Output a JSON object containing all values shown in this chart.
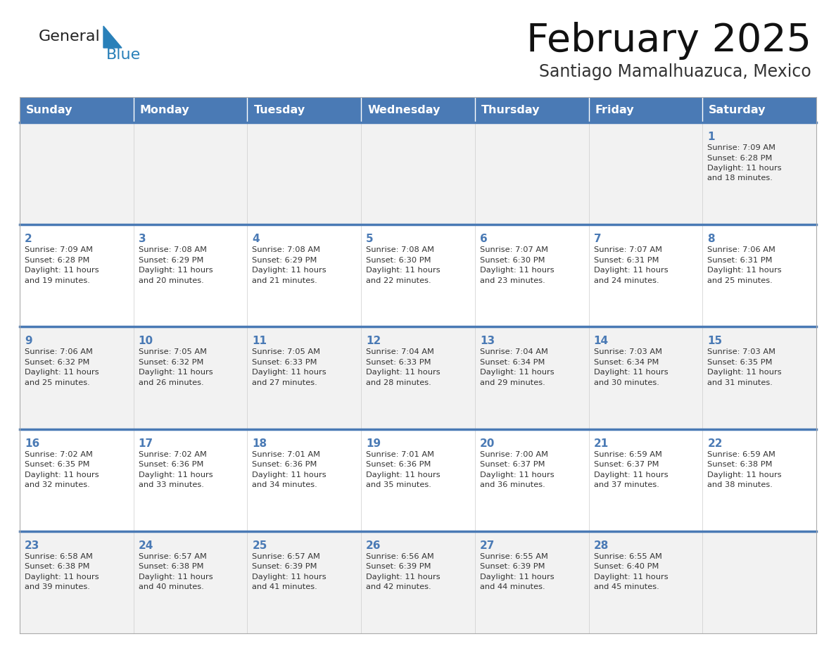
{
  "title": "February 2025",
  "subtitle": "Santiago Mamalhuazuca, Mexico",
  "header_bg": "#4a7ab5",
  "header_text": "#ffffff",
  "day_names": [
    "Sunday",
    "Monday",
    "Tuesday",
    "Wednesday",
    "Thursday",
    "Friday",
    "Saturday"
  ],
  "row_bg_odd": "#f2f2f2",
  "row_bg_even": "#ffffff",
  "cell_text_color": "#333333",
  "date_color": "#4a7ab5",
  "divider_color": "#4a7ab5",
  "logo_general_color": "#222222",
  "logo_blue_color": "#2980b9",
  "logo_triangle_color": "#2980b9",
  "fig_width": 11.88,
  "fig_height": 9.18,
  "dpi": 100,
  "cells": [
    {
      "day": 1,
      "col": 6,
      "row": 0,
      "sunrise": "7:09 AM",
      "sunset": "6:28 PM",
      "daylight_hours": 11,
      "daylight_minutes": 18
    },
    {
      "day": 2,
      "col": 0,
      "row": 1,
      "sunrise": "7:09 AM",
      "sunset": "6:28 PM",
      "daylight_hours": 11,
      "daylight_minutes": 19
    },
    {
      "day": 3,
      "col": 1,
      "row": 1,
      "sunrise": "7:08 AM",
      "sunset": "6:29 PM",
      "daylight_hours": 11,
      "daylight_minutes": 20
    },
    {
      "day": 4,
      "col": 2,
      "row": 1,
      "sunrise": "7:08 AM",
      "sunset": "6:29 PM",
      "daylight_hours": 11,
      "daylight_minutes": 21
    },
    {
      "day": 5,
      "col": 3,
      "row": 1,
      "sunrise": "7:08 AM",
      "sunset": "6:30 PM",
      "daylight_hours": 11,
      "daylight_minutes": 22
    },
    {
      "day": 6,
      "col": 4,
      "row": 1,
      "sunrise": "7:07 AM",
      "sunset": "6:30 PM",
      "daylight_hours": 11,
      "daylight_minutes": 23
    },
    {
      "day": 7,
      "col": 5,
      "row": 1,
      "sunrise": "7:07 AM",
      "sunset": "6:31 PM",
      "daylight_hours": 11,
      "daylight_minutes": 24
    },
    {
      "day": 8,
      "col": 6,
      "row": 1,
      "sunrise": "7:06 AM",
      "sunset": "6:31 PM",
      "daylight_hours": 11,
      "daylight_minutes": 25
    },
    {
      "day": 9,
      "col": 0,
      "row": 2,
      "sunrise": "7:06 AM",
      "sunset": "6:32 PM",
      "daylight_hours": 11,
      "daylight_minutes": 25
    },
    {
      "day": 10,
      "col": 1,
      "row": 2,
      "sunrise": "7:05 AM",
      "sunset": "6:32 PM",
      "daylight_hours": 11,
      "daylight_minutes": 26
    },
    {
      "day": 11,
      "col": 2,
      "row": 2,
      "sunrise": "7:05 AM",
      "sunset": "6:33 PM",
      "daylight_hours": 11,
      "daylight_minutes": 27
    },
    {
      "day": 12,
      "col": 3,
      "row": 2,
      "sunrise": "7:04 AM",
      "sunset": "6:33 PM",
      "daylight_hours": 11,
      "daylight_minutes": 28
    },
    {
      "day": 13,
      "col": 4,
      "row": 2,
      "sunrise": "7:04 AM",
      "sunset": "6:34 PM",
      "daylight_hours": 11,
      "daylight_minutes": 29
    },
    {
      "day": 14,
      "col": 5,
      "row": 2,
      "sunrise": "7:03 AM",
      "sunset": "6:34 PM",
      "daylight_hours": 11,
      "daylight_minutes": 30
    },
    {
      "day": 15,
      "col": 6,
      "row": 2,
      "sunrise": "7:03 AM",
      "sunset": "6:35 PM",
      "daylight_hours": 11,
      "daylight_minutes": 31
    },
    {
      "day": 16,
      "col": 0,
      "row": 3,
      "sunrise": "7:02 AM",
      "sunset": "6:35 PM",
      "daylight_hours": 11,
      "daylight_minutes": 32
    },
    {
      "day": 17,
      "col": 1,
      "row": 3,
      "sunrise": "7:02 AM",
      "sunset": "6:36 PM",
      "daylight_hours": 11,
      "daylight_minutes": 33
    },
    {
      "day": 18,
      "col": 2,
      "row": 3,
      "sunrise": "7:01 AM",
      "sunset": "6:36 PM",
      "daylight_hours": 11,
      "daylight_minutes": 34
    },
    {
      "day": 19,
      "col": 3,
      "row": 3,
      "sunrise": "7:01 AM",
      "sunset": "6:36 PM",
      "daylight_hours": 11,
      "daylight_minutes": 35
    },
    {
      "day": 20,
      "col": 4,
      "row": 3,
      "sunrise": "7:00 AM",
      "sunset": "6:37 PM",
      "daylight_hours": 11,
      "daylight_minutes": 36
    },
    {
      "day": 21,
      "col": 5,
      "row": 3,
      "sunrise": "6:59 AM",
      "sunset": "6:37 PM",
      "daylight_hours": 11,
      "daylight_minutes": 37
    },
    {
      "day": 22,
      "col": 6,
      "row": 3,
      "sunrise": "6:59 AM",
      "sunset": "6:38 PM",
      "daylight_hours": 11,
      "daylight_minutes": 38
    },
    {
      "day": 23,
      "col": 0,
      "row": 4,
      "sunrise": "6:58 AM",
      "sunset": "6:38 PM",
      "daylight_hours": 11,
      "daylight_minutes": 39
    },
    {
      "day": 24,
      "col": 1,
      "row": 4,
      "sunrise": "6:57 AM",
      "sunset": "6:38 PM",
      "daylight_hours": 11,
      "daylight_minutes": 40
    },
    {
      "day": 25,
      "col": 2,
      "row": 4,
      "sunrise": "6:57 AM",
      "sunset": "6:39 PM",
      "daylight_hours": 11,
      "daylight_minutes": 41
    },
    {
      "day": 26,
      "col": 3,
      "row": 4,
      "sunrise": "6:56 AM",
      "sunset": "6:39 PM",
      "daylight_hours": 11,
      "daylight_minutes": 42
    },
    {
      "day": 27,
      "col": 4,
      "row": 4,
      "sunrise": "6:55 AM",
      "sunset": "6:39 PM",
      "daylight_hours": 11,
      "daylight_minutes": 44
    },
    {
      "day": 28,
      "col": 5,
      "row": 4,
      "sunrise": "6:55 AM",
      "sunset": "6:40 PM",
      "daylight_hours": 11,
      "daylight_minutes": 45
    }
  ]
}
